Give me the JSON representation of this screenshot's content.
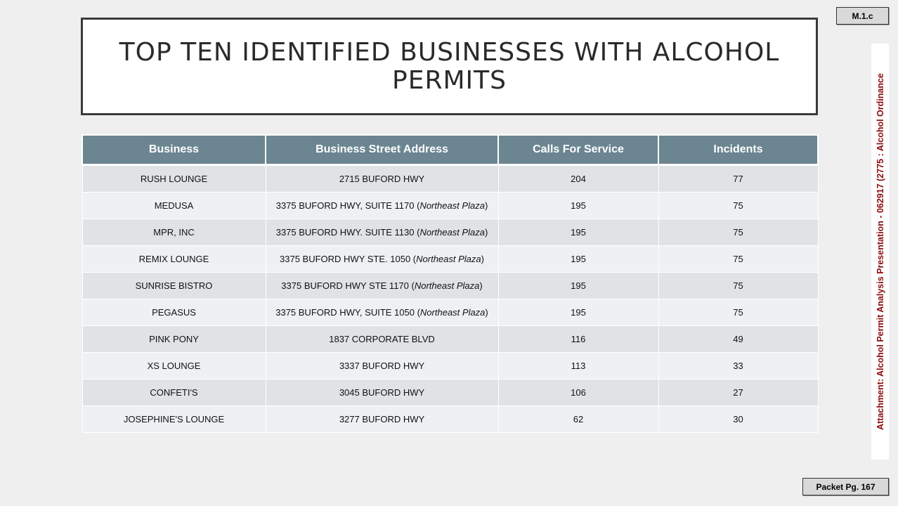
{
  "slide": {
    "title": "TOP TEN IDENTIFIED BUSINESSES WITH ALCOHOL PERMITS"
  },
  "table": {
    "headers": [
      "Business",
      "Business Street Address",
      "Calls For Service",
      "Incidents"
    ],
    "rows": [
      {
        "business": "RUSH LOUNGE",
        "address": "2715 BUFORD HWY",
        "plaza": "",
        "calls": "204",
        "incidents": "77"
      },
      {
        "business": "MEDUSA",
        "address": "3375 BUFORD HWY, SUITE 1170",
        "plaza": "Northeast Plaza",
        "calls": "195",
        "incidents": "75"
      },
      {
        "business": "MPR, INC",
        "address": "3375 BUFORD HWY. SUITE 1130",
        "plaza": "Northeast Plaza",
        "calls": "195",
        "incidents": "75"
      },
      {
        "business": "REMIX LOUNGE",
        "address": "3375 BUFORD HWY STE. 1050",
        "plaza": "Northeast Plaza",
        "calls": "195",
        "incidents": "75"
      },
      {
        "business": "SUNRISE BISTRO",
        "address": "3375 BUFORD HWY STE 1170",
        "plaza": "Northeast Plaza",
        "calls": "195",
        "incidents": "75"
      },
      {
        "business": "PEGASUS",
        "address": "3375 BUFORD HWY, SUITE 1050",
        "plaza": "Northeast Plaza",
        "calls": "195",
        "incidents": "75"
      },
      {
        "business": "PINK PONY",
        "address": "1837 CORPORATE BLVD",
        "plaza": "",
        "calls": "116",
        "incidents": "49"
      },
      {
        "business": "XS LOUNGE",
        "address": "3337 BUFORD HWY",
        "plaza": "",
        "calls": "113",
        "incidents": "33"
      },
      {
        "business": "CONFETI'S",
        "address": "3045 BUFORD HWY",
        "plaza": "",
        "calls": "106",
        "incidents": "27"
      },
      {
        "business": "JOSEPHINE'S LOUNGE",
        "address": "3277 BUFORD HWY",
        "plaza": "",
        "calls": "62",
        "incidents": "30"
      }
    ]
  },
  "margin": {
    "code": "M.1.c",
    "attachment": "Attachment: Alcohol Permit Analysis Presentation - 062917  (2775 : Alcohol Ordinance",
    "packet_page": "Packet Pg. 167"
  },
  "colors": {
    "header_bg": "#6b8591",
    "row_odd": "#dfe3e6",
    "row_even": "#eef1f4",
    "attachment_text": "#8b0a0a"
  }
}
